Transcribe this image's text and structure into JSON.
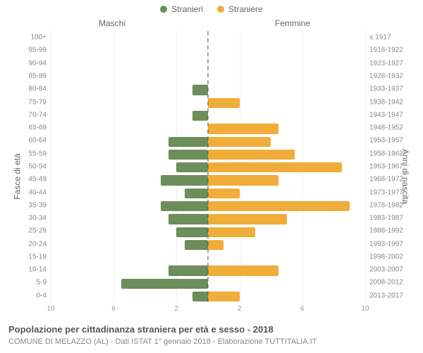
{
  "legend": {
    "male_label": "Stranieri",
    "female_label": "Straniere",
    "male_color": "#6b8e5a",
    "female_color": "#f0ad3a"
  },
  "column_heads": {
    "left": "Maschi",
    "right": "Femmine"
  },
  "y_axis": {
    "left_title": "Fasce di età",
    "right_title": "Anni di nascita"
  },
  "axis": {
    "max": 10,
    "ticks": [
      10,
      6,
      2,
      2,
      6,
      10
    ],
    "grid_color": "#eeeeee",
    "centerline_color": "#6b6b2a"
  },
  "title": "Popolazione per cittadinanza straniera per età e sesso - 2018",
  "subtitle": "COMUNE DI MELAZZO (AL) - Dati ISTAT 1° gennaio 2018 - Elaborazione TUTTITALIA.IT",
  "rows": [
    {
      "age": "100+",
      "birth": "≤ 1917",
      "m": 0,
      "f": 0
    },
    {
      "age": "95-99",
      "birth": "1918-1922",
      "m": 0,
      "f": 0
    },
    {
      "age": "90-94",
      "birth": "1923-1927",
      "m": 0,
      "f": 0
    },
    {
      "age": "85-89",
      "birth": "1928-1932",
      "m": 0,
      "f": 0
    },
    {
      "age": "80-84",
      "birth": "1933-1937",
      "m": 1,
      "f": 0
    },
    {
      "age": "75-79",
      "birth": "1938-1942",
      "m": 0,
      "f": 2
    },
    {
      "age": "70-74",
      "birth": "1943-1947",
      "m": 1,
      "f": 0
    },
    {
      "age": "65-69",
      "birth": "1948-1952",
      "m": 0,
      "f": 4.5
    },
    {
      "age": "60-64",
      "birth": "1953-1957",
      "m": 2.5,
      "f": 4
    },
    {
      "age": "55-59",
      "birth": "1958-1962",
      "m": 2.5,
      "f": 5.5
    },
    {
      "age": "50-54",
      "birth": "1963-1967",
      "m": 2,
      "f": 8.5
    },
    {
      "age": "45-49",
      "birth": "1968-1972",
      "m": 3,
      "f": 4.5
    },
    {
      "age": "40-44",
      "birth": "1973-1977",
      "m": 1.5,
      "f": 2
    },
    {
      "age": "35-39",
      "birth": "1978-1982",
      "m": 3,
      "f": 9
    },
    {
      "age": "30-34",
      "birth": "1983-1987",
      "m": 2.5,
      "f": 5
    },
    {
      "age": "25-29",
      "birth": "1988-1992",
      "m": 2,
      "f": 3
    },
    {
      "age": "20-24",
      "birth": "1993-1997",
      "m": 1.5,
      "f": 1
    },
    {
      "age": "15-19",
      "birth": "1998-2002",
      "m": 0,
      "f": 0
    },
    {
      "age": "10-14",
      "birth": "2003-2007",
      "m": 2.5,
      "f": 4.5
    },
    {
      "age": "5-9",
      "birth": "2008-2012",
      "m": 5.5,
      "f": 0
    },
    {
      "age": "0-4",
      "birth": "2013-2017",
      "m": 1,
      "f": 2
    }
  ],
  "style": {
    "background_color": "#ffffff",
    "text_color": "#666666",
    "label_fontsize": 10,
    "legend_fontsize": 12,
    "title_fontsize": 13,
    "subtitle_fontsize": 11,
    "bar_radius": 2
  }
}
